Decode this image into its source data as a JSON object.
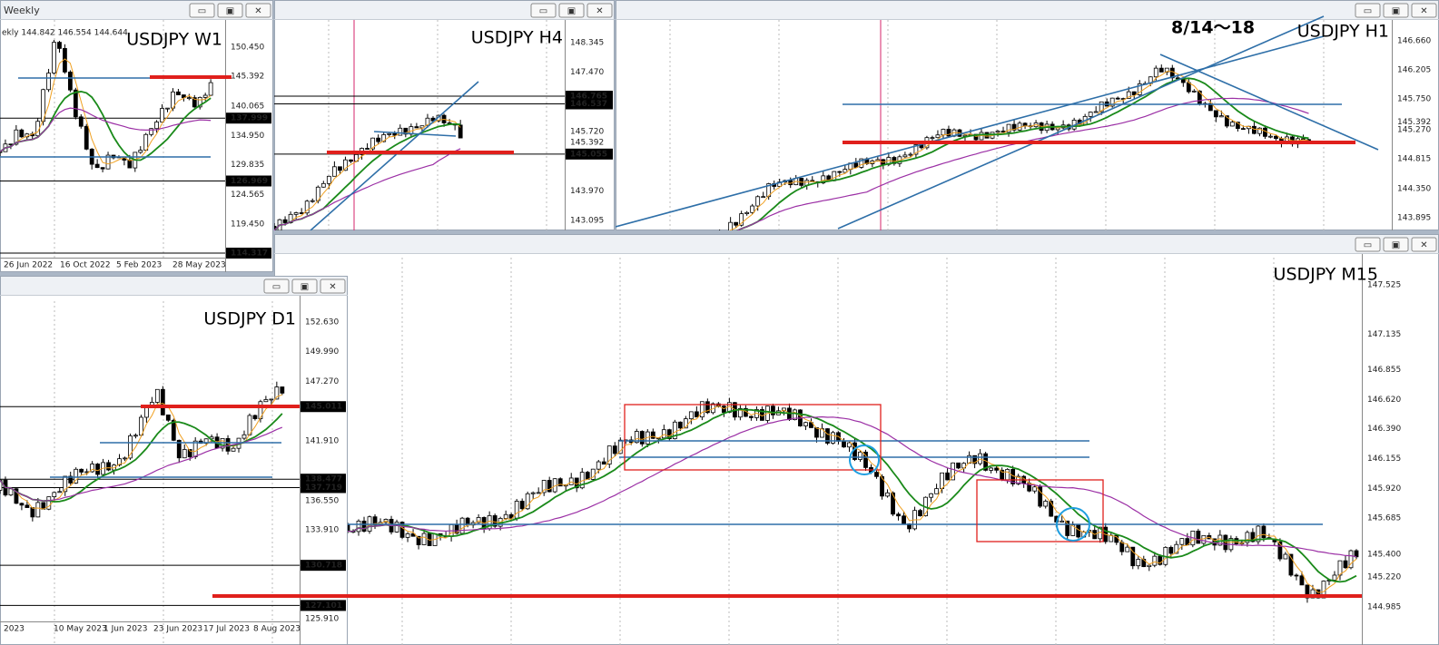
{
  "windows": [
    {
      "title": "Weekly",
      "header_text": "ekly 144.842 146.554 144.644",
      "chart_label": "USDJPY W1",
      "price_labels": [
        {
          "text": "150.450",
          "boxed": false
        },
        {
          "text": "145.392",
          "boxed": false
        },
        {
          "text": "140.065",
          "boxed": false
        },
        {
          "text": "137.999",
          "boxed": true
        },
        {
          "text": "134.950",
          "boxed": false
        },
        {
          "text": "129.835",
          "boxed": false
        },
        {
          "text": "126.969",
          "boxed": true
        },
        {
          "text": "124.565",
          "boxed": false
        },
        {
          "text": "119.450",
          "boxed": false
        },
        {
          "text": "114.317",
          "boxed": true
        }
      ],
      "date_labels": [
        "26 Jun 2022",
        "16 Oct 2022",
        "5 Feb 2023",
        "28 May 2023"
      ]
    },
    {
      "chart_label": "USDJPY H4",
      "price_labels": [
        {
          "text": "148.345",
          "boxed": false
        },
        {
          "text": "147.470",
          "boxed": false
        },
        {
          "text": "146.765",
          "boxed": true
        },
        {
          "text": "146.537",
          "boxed": true
        },
        {
          "text": "145.720",
          "boxed": false
        },
        {
          "text": "145.392",
          "boxed": false
        },
        {
          "text": "145.055",
          "boxed": true
        },
        {
          "text": "143.970",
          "boxed": false
        },
        {
          "text": "143.095",
          "boxed": false
        }
      ]
    },
    {
      "chart_label": "USDJPY H1",
      "annotation": "8/14〜18",
      "price_labels": [
        {
          "text": "146.660",
          "boxed": false
        },
        {
          "text": "146.205",
          "boxed": false
        },
        {
          "text": "145.750",
          "boxed": false
        },
        {
          "text": "145.392",
          "boxed": false
        },
        {
          "text": "145.270",
          "boxed": false
        },
        {
          "text": "144.815",
          "boxed": false
        },
        {
          "text": "144.350",
          "boxed": false
        },
        {
          "text": "143.895",
          "boxed": false
        }
      ]
    },
    {
      "chart_label": "USDJPY M15",
      "price_labels": [
        {
          "text": "147.525",
          "boxed": false
        },
        {
          "text": "147.135",
          "boxed": false
        },
        {
          "text": "146.855",
          "boxed": false
        },
        {
          "text": "146.620",
          "boxed": false
        },
        {
          "text": "146.390",
          "boxed": false
        },
        {
          "text": "146.155",
          "boxed": false
        },
        {
          "text": "145.920",
          "boxed": false
        },
        {
          "text": "145.685",
          "boxed": false
        },
        {
          "text": "145.400",
          "boxed": false
        },
        {
          "text": "145.220",
          "boxed": false
        },
        {
          "text": "144.985",
          "boxed": false
        }
      ]
    },
    {
      "chart_label": "USDJPY D1",
      "price_labels": [
        {
          "text": "152.630",
          "boxed": false
        },
        {
          "text": "149.990",
          "boxed": false
        },
        {
          "text": "147.270",
          "boxed": false
        },
        {
          "text": "145.011",
          "boxed": true
        },
        {
          "text": "141.910",
          "boxed": false
        },
        {
          "text": "138.477",
          "boxed": true
        },
        {
          "text": "137.719",
          "boxed": true
        },
        {
          "text": "136.550",
          "boxed": false
        },
        {
          "text": "133.910",
          "boxed": false
        },
        {
          "text": "130.718",
          "boxed": true
        },
        {
          "text": "127.101",
          "boxed": true
        },
        {
          "text": "125.910",
          "boxed": false
        }
      ],
      "date_labels": [
        "2023",
        "10 May 2023",
        "1 Jun 2023",
        "23 Jun 2023",
        "17 Jul 2023",
        "8 Aug 2023"
      ]
    }
  ]
}
